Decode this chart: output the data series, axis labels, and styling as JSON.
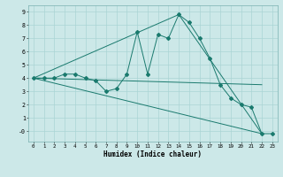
{
  "xlabel": "Humidex (Indice chaleur)",
  "xlim": [
    -0.5,
    23.5
  ],
  "ylim": [
    -0.8,
    9.5
  ],
  "bg_color": "#cce8e8",
  "line_color": "#1a7a6e",
  "grid_color": "#aad4d4",
  "main_x": [
    0,
    1,
    2,
    3,
    4,
    5,
    6,
    7,
    8,
    9,
    10,
    11,
    12,
    13,
    14,
    15,
    16,
    17,
    18,
    19,
    20,
    21,
    22,
    23
  ],
  "main_y": [
    4.0,
    4.0,
    4.0,
    4.3,
    4.3,
    4.0,
    3.8,
    3.0,
    3.2,
    4.3,
    7.5,
    4.3,
    7.3,
    7.0,
    8.8,
    8.2,
    7.0,
    5.5,
    3.5,
    2.5,
    2.0,
    1.8,
    -0.2,
    -0.2
  ],
  "line1_x": [
    0,
    14,
    22
  ],
  "line1_y": [
    4.0,
    8.8,
    -0.2
  ],
  "line2_x": [
    0,
    22
  ],
  "line2_y": [
    4.0,
    3.5
  ],
  "line3_x": [
    0,
    22
  ],
  "line3_y": [
    4.0,
    -0.2
  ],
  "line4_x": [
    0,
    22
  ],
  "line4_y": [
    4.0,
    -0.2
  ],
  "yticks": [
    0,
    1,
    2,
    3,
    4,
    5,
    6,
    7,
    8,
    9
  ],
  "ytick_labels": [
    "-0",
    "1",
    "2",
    "3",
    "4",
    "5",
    "6",
    "7",
    "8",
    "9"
  ],
  "xticks": [
    0,
    1,
    2,
    3,
    4,
    5,
    6,
    7,
    8,
    9,
    10,
    11,
    12,
    13,
    14,
    15,
    16,
    17,
    18,
    19,
    20,
    21,
    22,
    23
  ]
}
